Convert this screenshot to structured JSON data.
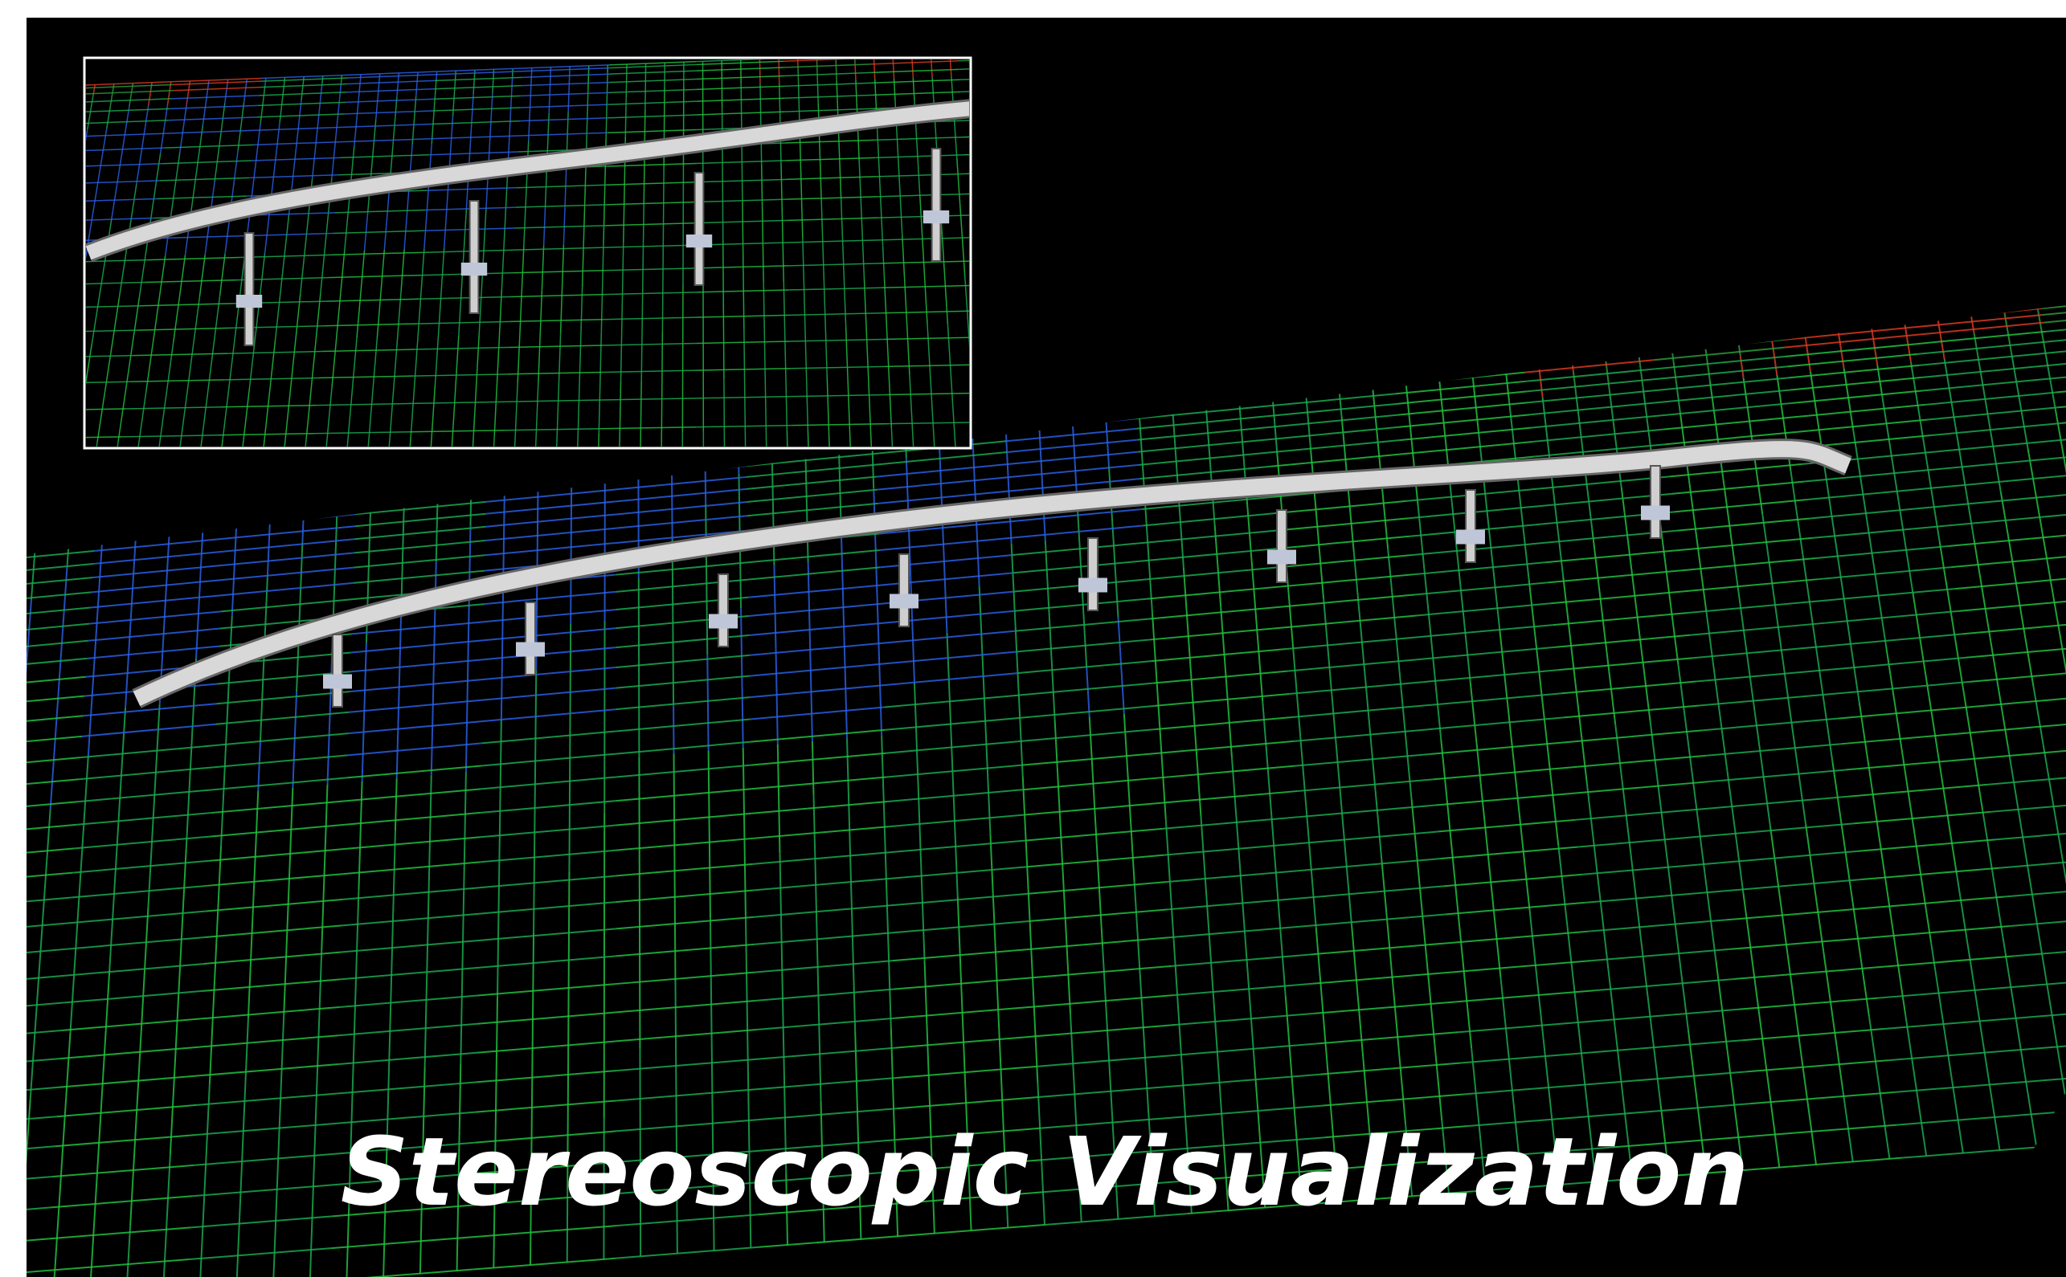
{
  "caption": "Stereoscopic Visualization"
}
